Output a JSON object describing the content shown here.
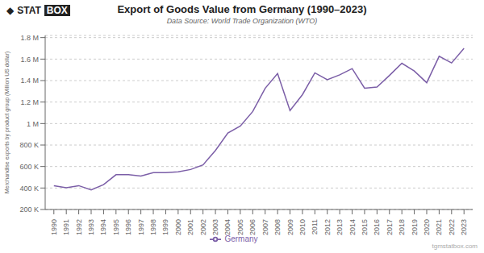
{
  "chart_data": {
    "type": "line",
    "title": "Export of Goods Value from Germany (1990–2023)",
    "subtitle": "Data Source: World Trade Organization (WTO)",
    "y_label": "Merchandise exports by product group (Million US dollar)",
    "annotations": [
      "◆",
      "STAT",
      "BOX",
      "tgmstatbox.com"
    ],
    "x": [
      1990,
      1991,
      1992,
      1993,
      1994,
      1995,
      1996,
      1997,
      1998,
      1999,
      2000,
      2001,
      2002,
      2003,
      2004,
      2005,
      2006,
      2007,
      2008,
      2009,
      2010,
      2011,
      2012,
      2013,
      2014,
      2015,
      2016,
      2017,
      2018,
      2019,
      2020,
      2021,
      2022,
      2023
    ],
    "series": [
      {
        "name": "Germany",
        "color": "#7B5EA7",
        "values": [
          421000,
          403000,
          422000,
          382000,
          431000,
          524000,
          524000,
          512000,
          543000,
          543000,
          550000,
          572000,
          615000,
          750000,
          912000,
          977000,
          1112000,
          1328000,
          1465000,
          1121000,
          1269000,
          1472000,
          1408000,
          1453000,
          1511000,
          1329000,
          1340000,
          1448000,
          1561000,
          1489000,
          1380000,
          1626000,
          1564000,
          1700000
        ]
      }
    ],
    "xlim": [
      1989.3,
      2023.7
    ],
    "xticks": [
      1990,
      1991,
      1992,
      1993,
      1994,
      1995,
      1996,
      1997,
      1998,
      1999,
      2000,
      2001,
      2002,
      2003,
      2004,
      2005,
      2006,
      2007,
      2008,
      2009,
      2010,
      2011,
      2012,
      2013,
      2014,
      2015,
      2016,
      2017,
      2018,
      2019,
      2020,
      2021,
      2022,
      2023
    ],
    "ylim": [
      200000,
      1820000
    ],
    "yticks": [
      {
        "value": 200000,
        "label": "200 K"
      },
      {
        "value": 400000,
        "label": "400 K"
      },
      {
        "value": 600000,
        "label": "600 K"
      },
      {
        "value": 800000,
        "label": "800 K"
      },
      {
        "value": 1000000,
        "label": "1 M"
      },
      {
        "value": 1200000,
        "label": "1.2 M"
      },
      {
        "value": 1400000,
        "label": "1.4 M"
      },
      {
        "value": 1600000,
        "label": "1.6 M"
      },
      {
        "value": 1800000,
        "label": "1.8 M"
      }
    ],
    "grid": "y",
    "legend": "bottom"
  }
}
